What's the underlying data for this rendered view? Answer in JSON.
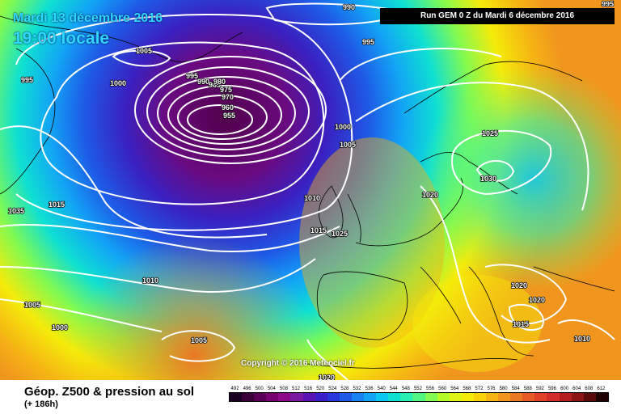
{
  "header": {
    "date": "Mardi 13 décembre 2016",
    "time": "19:00 locale",
    "run": "Run GEM 0 Z du Mardi 6 décembre 2016"
  },
  "copyright": "Copyright © 2016 Meteociel.fr",
  "footer": {
    "title": "Géop. Z500 & pression au sol",
    "subtitle": "(+ 186h)"
  },
  "scale": {
    "labels": [
      "492",
      "496",
      "500",
      "504",
      "508",
      "512",
      "516",
      "520",
      "524",
      "528",
      "532",
      "536",
      "540",
      "544",
      "548",
      "552",
      "556",
      "560",
      "564",
      "568",
      "572",
      "576",
      "580",
      "584",
      "588",
      "592",
      "596",
      "600",
      "604",
      "608",
      "612"
    ],
    "colors": [
      "#1a0020",
      "#3a0038",
      "#5a0055",
      "#78006e",
      "#8c0a8a",
      "#7a1aa0",
      "#5a14b4",
      "#3a1ec8",
      "#2836dc",
      "#1e5ae6",
      "#1a82f0",
      "#12a5f5",
      "#0ac8f0",
      "#0fe0d2",
      "#28f0b4",
      "#50f582",
      "#82fa50",
      "#b4fa28",
      "#dcf514",
      "#f5eb0a",
      "#fad20a",
      "#f5b414",
      "#f0961e",
      "#eb7823",
      "#e65a28",
      "#e14128",
      "#d22d28",
      "#b41e1e",
      "#8c1414",
      "#5a0a0a",
      "#1e0000"
    ]
  },
  "isobars": [
    "990",
    "995",
    "1005",
    "995",
    "1000",
    "995",
    "990",
    "985",
    "980",
    "975",
    "970",
    "960",
    "955",
    "1000",
    "1005",
    "1010",
    "1015",
    "1020",
    "1025",
    "1030",
    "1035",
    "1015",
    "1010",
    "1005",
    "1000",
    "1005",
    "1025",
    "1020",
    "1020",
    "1015",
    "1010",
    "1015",
    "995"
  ]
}
